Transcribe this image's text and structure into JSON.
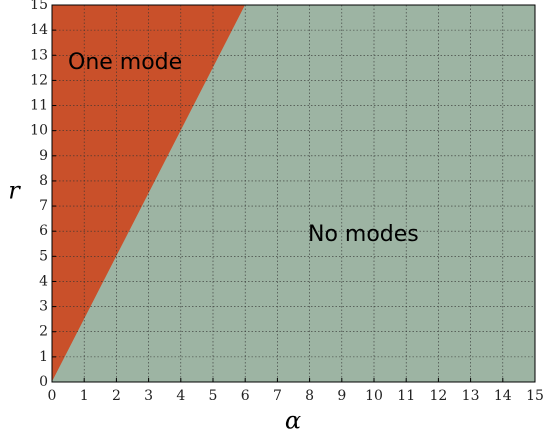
{
  "chart_data": {
    "type": "region",
    "xlabel": "α",
    "ylabel": "r",
    "boundary": {
      "x": [
        0,
        6
      ],
      "y": [
        0,
        15
      ]
    },
    "regions": [
      {
        "label": "One mode",
        "color": "#c9502a",
        "side": "above"
      },
      {
        "label": "No modes",
        "color": "#9db4a3",
        "side": "below"
      }
    ],
    "xlim": [
      0,
      15
    ],
    "ylim": [
      0,
      15
    ],
    "xticks": [
      0,
      1,
      2,
      3,
      4,
      5,
      6,
      7,
      8,
      9,
      10,
      11,
      12,
      13,
      14,
      15
    ],
    "yticks": [
      0,
      1,
      2,
      3,
      4,
      5,
      6,
      7,
      8,
      9,
      10,
      11,
      12,
      13,
      14,
      15
    ],
    "grid": true
  }
}
